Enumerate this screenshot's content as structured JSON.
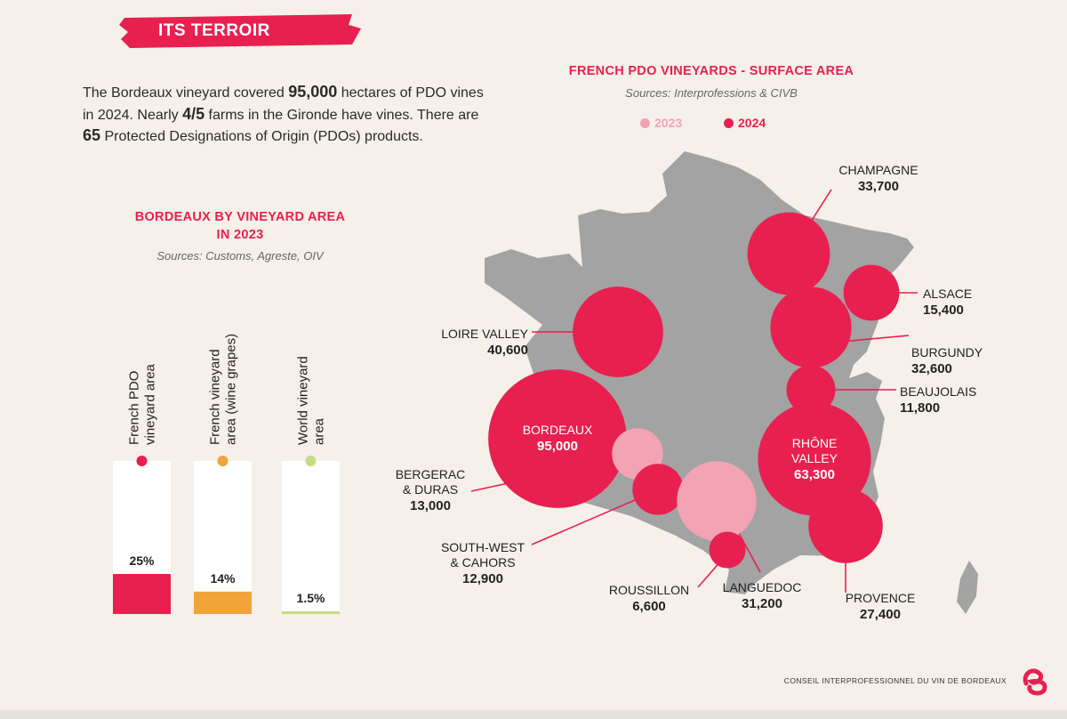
{
  "header": {
    "section_label": "ITS TERROIR"
  },
  "intro": {
    "t1": "The Bordeaux vineyard covered ",
    "n1": "95,000",
    "t2": " hectares of PDO vines in 2024. Nearly ",
    "n2": "4/5",
    "t3": " farms in the Gironde have vines. There are ",
    "n3": "65",
    "t4": " Protected Designations of Origin (PDOs) products."
  },
  "footer": {
    "org": "CONSEIL INTERPROFESSIONNEL DU VIN DE BORDEAUX"
  },
  "colors": {
    "pdo": "#e8204f",
    "french": "#f0a43a",
    "world": "#c6dc86",
    "y2023": "#f2a3b4",
    "y2024": "#e8204f",
    "map": "#a3a3a3"
  },
  "chart_data": [
    {
      "type": "bar",
      "title_line1": "BORDEAUX BY VINEYARD AREA",
      "title_line2": "IN 2023",
      "source": "Sources: Customs, Agreste, OIV",
      "unit": "%",
      "ylim": [
        0,
        100
      ],
      "categories": [
        {
          "line1": "French PDO",
          "line2": "vineyard area",
          "value": 25,
          "label": "25%",
          "color": "#e8204f"
        },
        {
          "line1": "French vineyard",
          "line2": "area (wine grapes)",
          "value": 14,
          "label": "14%",
          "color": "#f0a43a"
        },
        {
          "line1": "World vineyard",
          "line2": "area",
          "value": 1.5,
          "label": "1.5%",
          "color": "#c6dc86"
        }
      ]
    },
    {
      "type": "bubble-map",
      "title": "FRENCH PDO VINEYARDS - SURFACE AREA",
      "source": "Sources: Interprofessions & CIVB",
      "legend": [
        {
          "label": "2023",
          "color": "#f2a3b4"
        },
        {
          "label": "2024",
          "color": "#e8204f"
        }
      ],
      "series": [
        {
          "name": "CHAMPAGNE",
          "value": 33700,
          "value_label": "33,700",
          "year": "2024"
        },
        {
          "name": "ALSACE",
          "value": 15400,
          "value_label": "15,400",
          "year": "2024"
        },
        {
          "name": "LOIRE VALLEY",
          "value": 40600,
          "value_label": "40,600",
          "year": "2024"
        },
        {
          "name": "BURGUNDY",
          "value": 32600,
          "value_label": "32,600",
          "year": "2024"
        },
        {
          "name": "BEAUJOLAIS",
          "value": 11800,
          "value_label": "11,800",
          "year": "2024"
        },
        {
          "name": "BORDEAUX",
          "value": 95000,
          "value_label": "95,000",
          "year": "2024"
        },
        {
          "name": "RHÔNE VALLEY",
          "value": 63300,
          "value_label": "63,300",
          "year": "2024"
        },
        {
          "name": "BERGERAC & DURAS",
          "value": 13000,
          "value_label": "13,000",
          "year": "2023"
        },
        {
          "name": "SOUTH-WEST & CAHORS",
          "value": 12900,
          "value_label": "12,900",
          "year": "2024"
        },
        {
          "name": "LANGUEDOC",
          "value": 31200,
          "value_label": "31,200",
          "year": "2023"
        },
        {
          "name": "PROVENCE",
          "value": 27400,
          "value_label": "27,400",
          "year": "2024"
        },
        {
          "name": "ROUSSILLON",
          "value": 6600,
          "value_label": "6,600",
          "year": "2024"
        }
      ]
    }
  ]
}
